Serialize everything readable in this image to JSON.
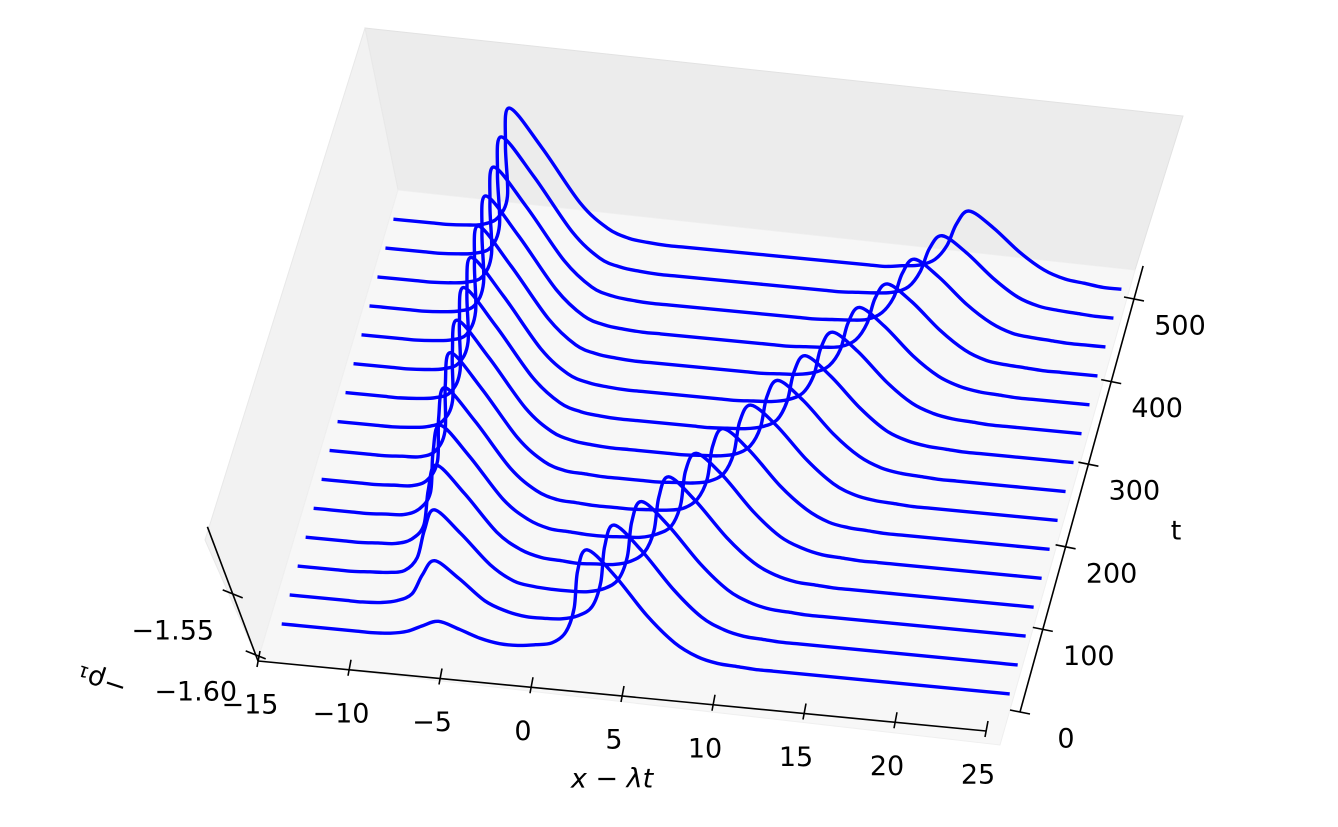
{
  "chart_data": {
    "type": "waterfall3d",
    "xlabel": "x − λt",
    "ylabel": "t",
    "zlabel": "−ρ₁",
    "color": "#0000ff",
    "xlim": [
      -15,
      25
    ],
    "ylim": [
      0,
      540
    ],
    "zlim": [
      -1.605,
      -1.495
    ],
    "xticks": [
      {
        "value": -15,
        "label": "−15"
      },
      {
        "value": -10,
        "label": "−10"
      },
      {
        "value": -5,
        "label": "−5"
      },
      0,
      5,
      10,
      15,
      20,
      25
    ],
    "yticks": [
      0,
      100,
      200,
      300,
      400,
      500
    ],
    "zticks": [
      {
        "value": -1.6,
        "label": "−1.60"
      },
      {
        "value": -1.55,
        "label": "−1.55"
      }
    ],
    "x": [
      -15,
      -14,
      -13,
      -12,
      -11,
      -10,
      -9,
      -8,
      -7,
      -6,
      -5,
      -4,
      -3,
      -2,
      -1,
      0,
      1,
      2,
      3,
      4,
      5,
      6,
      7,
      8,
      9,
      10,
      11,
      12,
      13,
      14,
      15,
      16,
      17,
      18,
      19,
      20,
      21,
      22,
      23,
      24,
      25
    ],
    "series": [
      {
        "t": 0,
        "values": [
          -1.6,
          -1.6,
          -1.6,
          -1.6,
          -1.6,
          -1.6,
          -1.599,
          -1.596,
          -1.59,
          -1.585,
          -1.59,
          -1.596,
          -1.599,
          -1.599,
          -1.597,
          -1.594,
          -1.584,
          -1.563,
          -1.531,
          -1.512,
          -1.531,
          -1.563,
          -1.584,
          -1.594,
          -1.598,
          -1.599,
          -1.6,
          -1.6,
          -1.6,
          -1.6,
          -1.6,
          -1.6,
          -1.6,
          -1.6,
          -1.6,
          -1.6,
          -1.6,
          -1.6,
          -1.6,
          -1.6,
          -1.6
        ]
      },
      {
        "t": 35,
        "values": [
          -1.6,
          -1.6,
          -1.6,
          -1.6,
          -1.6,
          -1.599,
          -1.596,
          -1.589,
          -1.572,
          -1.559,
          -1.572,
          -1.589,
          -1.596,
          -1.599,
          -1.599,
          -1.598,
          -1.594,
          -1.585,
          -1.564,
          -1.533,
          -1.514,
          -1.533,
          -1.564,
          -1.585,
          -1.594,
          -1.598,
          -1.599,
          -1.6,
          -1.6,
          -1.6,
          -1.6,
          -1.6,
          -1.6,
          -1.6,
          -1.6,
          -1.6,
          -1.6,
          -1.6,
          -1.6,
          -1.6,
          -1.6
        ]
      },
      {
        "t": 70,
        "values": [
          -1.6,
          -1.6,
          -1.6,
          -1.6,
          -1.599,
          -1.598,
          -1.595,
          -1.583,
          -1.559,
          -1.541,
          -1.559,
          -1.583,
          -1.595,
          -1.598,
          -1.599,
          -1.599,
          -1.598,
          -1.594,
          -1.585,
          -1.565,
          -1.535,
          -1.517,
          -1.535,
          -1.565,
          -1.585,
          -1.594,
          -1.598,
          -1.599,
          -1.6,
          -1.6,
          -1.6,
          -1.6,
          -1.6,
          -1.6,
          -1.6,
          -1.6,
          -1.6,
          -1.6,
          -1.6,
          -1.6,
          -1.6
        ]
      },
      {
        "t": 105,
        "values": [
          -1.6,
          -1.6,
          -1.6,
          -1.6,
          -1.599,
          -1.598,
          -1.593,
          -1.58,
          -1.55,
          -1.528,
          -1.55,
          -1.58,
          -1.593,
          -1.598,
          -1.599,
          -1.6,
          -1.599,
          -1.598,
          -1.594,
          -1.585,
          -1.566,
          -1.537,
          -1.519,
          -1.537,
          -1.566,
          -1.585,
          -1.594,
          -1.598,
          -1.599,
          -1.6,
          -1.6,
          -1.6,
          -1.6,
          -1.6,
          -1.6,
          -1.6,
          -1.6,
          -1.6,
          -1.6,
          -1.6,
          -1.6
        ]
      },
      {
        "t": 140,
        "values": [
          -1.6,
          -1.6,
          -1.6,
          -1.6,
          -1.599,
          -1.598,
          -1.592,
          -1.577,
          -1.543,
          -1.519,
          -1.543,
          -1.577,
          -1.592,
          -1.598,
          -1.599,
          -1.6,
          -1.6,
          -1.599,
          -1.598,
          -1.594,
          -1.586,
          -1.567,
          -1.538,
          -1.522,
          -1.538,
          -1.567,
          -1.586,
          -1.594,
          -1.598,
          -1.599,
          -1.6,
          -1.6,
          -1.6,
          -1.6,
          -1.6,
          -1.6,
          -1.6,
          -1.6,
          -1.6,
          -1.6,
          -1.6
        ]
      },
      {
        "t": 175,
        "values": [
          -1.6,
          -1.6,
          -1.6,
          -1.6,
          -1.599,
          -1.598,
          -1.592,
          -1.575,
          -1.538,
          -1.512,
          -1.538,
          -1.575,
          -1.592,
          -1.598,
          -1.599,
          -1.6,
          -1.6,
          -1.6,
          -1.599,
          -1.598,
          -1.595,
          -1.586,
          -1.568,
          -1.54,
          -1.524,
          -1.54,
          -1.568,
          -1.586,
          -1.595,
          -1.598,
          -1.599,
          -1.6,
          -1.6,
          -1.6,
          -1.6,
          -1.6,
          -1.6,
          -1.6,
          -1.6,
          -1.6,
          -1.6
        ]
      },
      {
        "t": 210,
        "values": [
          -1.6,
          -1.6,
          -1.6,
          -1.6,
          -1.599,
          -1.598,
          -1.592,
          -1.574,
          -1.535,
          -1.507,
          -1.535,
          -1.574,
          -1.592,
          -1.598,
          -1.599,
          -1.6,
          -1.6,
          -1.6,
          -1.6,
          -1.599,
          -1.598,
          -1.595,
          -1.587,
          -1.569,
          -1.542,
          -1.527,
          -1.542,
          -1.569,
          -1.587,
          -1.595,
          -1.598,
          -1.599,
          -1.6,
          -1.6,
          -1.6,
          -1.6,
          -1.6,
          -1.6,
          -1.6,
          -1.6,
          -1.6
        ]
      },
      {
        "t": 245,
        "values": [
          -1.6,
          -1.6,
          -1.6,
          -1.6,
          -1.599,
          -1.597,
          -1.591,
          -1.573,
          -1.533,
          -1.504,
          -1.533,
          -1.573,
          -1.591,
          -1.597,
          -1.599,
          -1.6,
          -1.6,
          -1.6,
          -1.6,
          -1.6,
          -1.599,
          -1.598,
          -1.595,
          -1.587,
          -1.57,
          -1.544,
          -1.529,
          -1.544,
          -1.57,
          -1.587,
          -1.595,
          -1.598,
          -1.599,
          -1.6,
          -1.6,
          -1.6,
          -1.6,
          -1.6,
          -1.6,
          -1.6,
          -1.6
        ]
      },
      {
        "t": 280,
        "values": [
          -1.6,
          -1.6,
          -1.6,
          -1.6,
          -1.599,
          -1.597,
          -1.591,
          -1.572,
          -1.531,
          -1.501,
          -1.531,
          -1.572,
          -1.591,
          -1.597,
          -1.599,
          -1.6,
          -1.6,
          -1.6,
          -1.6,
          -1.6,
          -1.6,
          -1.599,
          -1.598,
          -1.595,
          -1.588,
          -1.571,
          -1.546,
          -1.531,
          -1.546,
          -1.571,
          -1.588,
          -1.595,
          -1.598,
          -1.599,
          -1.6,
          -1.6,
          -1.6,
          -1.6,
          -1.6,
          -1.6,
          -1.6
        ]
      },
      {
        "t": 315,
        "values": [
          -1.6,
          -1.6,
          -1.6,
          -1.6,
          -1.599,
          -1.597,
          -1.591,
          -1.572,
          -1.53,
          -1.5,
          -1.53,
          -1.572,
          -1.591,
          -1.597,
          -1.599,
          -1.6,
          -1.6,
          -1.6,
          -1.6,
          -1.6,
          -1.6,
          -1.6,
          -1.599,
          -1.598,
          -1.595,
          -1.588,
          -1.572,
          -1.548,
          -1.534,
          -1.548,
          -1.572,
          -1.588,
          -1.595,
          -1.598,
          -1.599,
          -1.6,
          -1.6,
          -1.6,
          -1.6,
          -1.6,
          -1.6
        ]
      },
      {
        "t": 350,
        "values": [
          -1.6,
          -1.6,
          -1.6,
          -1.6,
          -1.599,
          -1.597,
          -1.591,
          -1.571,
          -1.529,
          -1.498,
          -1.529,
          -1.571,
          -1.591,
          -1.597,
          -1.599,
          -1.6,
          -1.6,
          -1.6,
          -1.6,
          -1.6,
          -1.6,
          -1.6,
          -1.6,
          -1.599,
          -1.598,
          -1.595,
          -1.588,
          -1.573,
          -1.55,
          -1.536,
          -1.55,
          -1.573,
          -1.588,
          -1.595,
          -1.598,
          -1.599,
          -1.6,
          -1.6,
          -1.6,
          -1.6,
          -1.6
        ]
      },
      {
        "t": 385,
        "values": [
          -1.6,
          -1.6,
          -1.6,
          -1.6,
          -1.599,
          -1.597,
          -1.591,
          -1.571,
          -1.528,
          -1.497,
          -1.528,
          -1.571,
          -1.591,
          -1.597,
          -1.599,
          -1.6,
          -1.6,
          -1.6,
          -1.6,
          -1.6,
          -1.6,
          -1.6,
          -1.6,
          -1.6,
          -1.599,
          -1.598,
          -1.596,
          -1.589,
          -1.574,
          -1.552,
          -1.539,
          -1.552,
          -1.574,
          -1.589,
          -1.596,
          -1.598,
          -1.599,
          -1.6,
          -1.6,
          -1.6,
          -1.6
        ]
      },
      {
        "t": 420,
        "values": [
          -1.6,
          -1.6,
          -1.6,
          -1.6,
          -1.599,
          -1.597,
          -1.591,
          -1.571,
          -1.528,
          -1.497,
          -1.528,
          -1.571,
          -1.591,
          -1.597,
          -1.599,
          -1.6,
          -1.6,
          -1.6,
          -1.6,
          -1.6,
          -1.6,
          -1.6,
          -1.6,
          -1.6,
          -1.6,
          -1.599,
          -1.598,
          -1.596,
          -1.589,
          -1.575,
          -1.554,
          -1.541,
          -1.554,
          -1.575,
          -1.589,
          -1.596,
          -1.598,
          -1.599,
          -1.6,
          -1.6,
          -1.6
        ]
      },
      {
        "t": 455,
        "values": [
          -1.6,
          -1.6,
          -1.6,
          -1.6,
          -1.599,
          -1.597,
          -1.591,
          -1.571,
          -1.527,
          -1.496,
          -1.527,
          -1.571,
          -1.591,
          -1.597,
          -1.599,
          -1.6,
          -1.6,
          -1.6,
          -1.6,
          -1.6,
          -1.6,
          -1.6,
          -1.6,
          -1.6,
          -1.6,
          -1.6,
          -1.599,
          -1.598,
          -1.596,
          -1.59,
          -1.576,
          -1.556,
          -1.544,
          -1.556,
          -1.576,
          -1.59,
          -1.596,
          -1.598,
          -1.599,
          -1.6,
          -1.6
        ]
      },
      {
        "t": 490,
        "values": [
          -1.6,
          -1.6,
          -1.6,
          -1.6,
          -1.599,
          -1.597,
          -1.59,
          -1.571,
          -1.527,
          -1.496,
          -1.527,
          -1.571,
          -1.59,
          -1.597,
          -1.599,
          -1.6,
          -1.6,
          -1.6,
          -1.6,
          -1.6,
          -1.6,
          -1.6,
          -1.6,
          -1.6,
          -1.6,
          -1.6,
          -1.6,
          -1.6,
          -1.598,
          -1.596,
          -1.59,
          -1.577,
          -1.558,
          -1.546,
          -1.558,
          -1.577,
          -1.59,
          -1.596,
          -1.598,
          -1.6,
          -1.6
        ]
      }
    ]
  }
}
